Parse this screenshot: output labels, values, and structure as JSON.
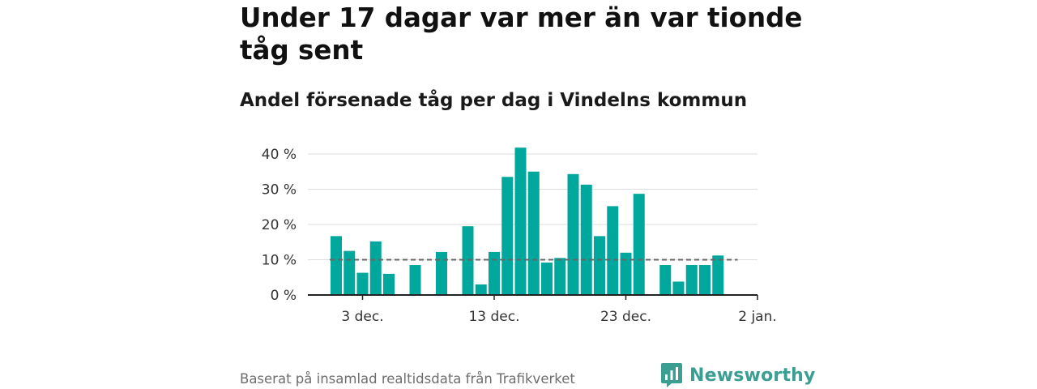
{
  "header": {
    "title": "Under 17 dagar var mer än var tionde tåg sent",
    "subtitle": "Andel försenade tåg per dag i Vindelns kommun"
  },
  "footer": {
    "source": "Baserat på insamlad realtidsdata från Trafikverket",
    "brand": "Newsworthy"
  },
  "colors": {
    "bar": "#00a79c",
    "reference_line": "#666666",
    "grid": "#dddddd",
    "axis": "#222222",
    "brand": "#3b9e93"
  },
  "chart_data": {
    "type": "bar",
    "title": "Under 17 dagar var mer än var tionde tåg sent",
    "subtitle": "Andel försenade tåg per dag i Vindelns kommun",
    "xlabel": "",
    "ylabel": "",
    "ylim": [
      0,
      40
    ],
    "yticks": [
      0,
      10,
      20,
      30,
      40
    ],
    "ytick_labels": [
      "0 %",
      "10 %",
      "20 %",
      "30 %",
      "40 %"
    ],
    "xtick_labels": [
      "3 dec.",
      "13 dec.",
      "23 dec.",
      "2 jan."
    ],
    "xtick_dates": [
      "2023-12-03",
      "2023-12-13",
      "2023-12-23",
      "2024-01-02"
    ],
    "x": [
      "2023-12-01",
      "2023-12-02",
      "2023-12-03",
      "2023-12-04",
      "2023-12-05",
      "2023-12-06",
      "2023-12-07",
      "2023-12-08",
      "2023-12-09",
      "2023-12-10",
      "2023-12-11",
      "2023-12-12",
      "2023-12-13",
      "2023-12-14",
      "2023-12-15",
      "2023-12-16",
      "2023-12-17",
      "2023-12-18",
      "2023-12-19",
      "2023-12-20",
      "2023-12-21",
      "2023-12-22",
      "2023-12-23",
      "2023-12-24",
      "2023-12-25",
      "2023-12-26",
      "2023-12-27",
      "2023-12-28",
      "2023-12-29",
      "2023-12-30",
      "2023-12-31",
      "2024-01-01",
      "2024-01-02"
    ],
    "values": [
      16.7,
      12.5,
      6.3,
      15.2,
      6.0,
      null,
      8.5,
      null,
      12.2,
      null,
      19.5,
      3.0,
      12.2,
      33.5,
      41.8,
      35.0,
      9.2,
      10.5,
      34.3,
      31.3,
      16.7,
      25.2,
      12.0,
      28.7,
      null,
      8.5,
      3.8,
      8.5,
      8.5,
      11.2,
      null,
      null,
      null
    ],
    "reference_line": {
      "value": 10,
      "from": "2023-12-01",
      "to": "2023-12-31",
      "style": "dashed"
    },
    "grid": true
  }
}
